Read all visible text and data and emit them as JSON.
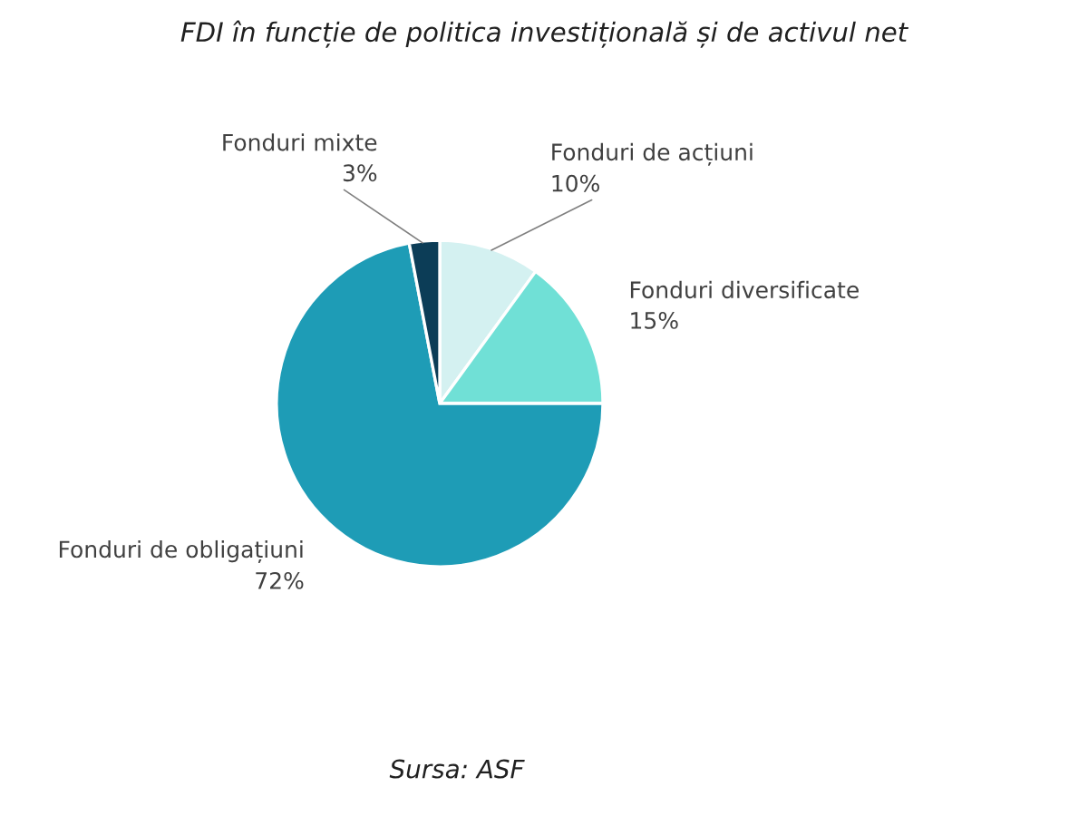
{
  "chart_data": {
    "type": "pie",
    "title": "FDI în funcție de politica investițională și de activul net",
    "categories": [
      "Fonduri de acțiuni",
      "Fonduri diversificate",
      "Fonduri de obligațiuni",
      "Fonduri mixte"
    ],
    "values": [
      10,
      15,
      72,
      3
    ],
    "colors": [
      "#d4f1f1",
      "#70e0d6",
      "#1e9cb6",
      "#0c3d57"
    ],
    "value_labels": [
      "10%",
      "15%",
      "72%",
      "3%"
    ],
    "annotations": [
      "Sursa: ASF"
    ]
  }
}
